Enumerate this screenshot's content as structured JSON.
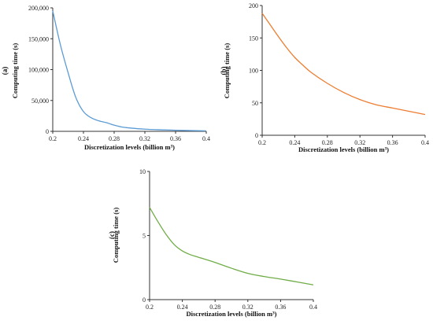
{
  "chart_data": [
    {
      "type": "line",
      "panel_label": "(a)",
      "xlabel": "Discretization levels (billion m³)",
      "ylabel": "Computing time (s)",
      "xlim": [
        0.2,
        0.4
      ],
      "ylim": [
        0,
        200000
      ],
      "xticks": [
        "0.2",
        "0.24",
        "0.28",
        "0.32",
        "0.36",
        "0.4"
      ],
      "yticks": [
        "0",
        "50,000",
        "100,000",
        "150,000",
        "200,000"
      ],
      "color": "#5b9bd5",
      "x": [
        0.2,
        0.21,
        0.22,
        0.23,
        0.24,
        0.25,
        0.26,
        0.27,
        0.28,
        0.29,
        0.3,
        0.32,
        0.34,
        0.36,
        0.38,
        0.4
      ],
      "y": [
        195000,
        140000,
        95000,
        55000,
        32000,
        22000,
        17000,
        14000,
        10000,
        7000,
        5500,
        3500,
        2500,
        1800,
        1200,
        800
      ]
    },
    {
      "type": "line",
      "panel_label": "(b)",
      "xlabel": "Discretization levels (billion m³)",
      "ylabel": "Computing time (s)",
      "xlim": [
        0.2,
        0.4
      ],
      "ylim": [
        0,
        200
      ],
      "xticks": [
        "0.2",
        "0.24",
        "0.28",
        "0.32",
        "0.36",
        "0.4"
      ],
      "yticks": [
        "0",
        "50",
        "100",
        "150",
        "200"
      ],
      "color": "#ed7d31",
      "x": [
        0.2,
        0.21,
        0.22,
        0.23,
        0.24,
        0.25,
        0.26,
        0.28,
        0.3,
        0.32,
        0.34,
        0.36,
        0.38,
        0.4
      ],
      "y": [
        188,
        170,
        152,
        135,
        120,
        108,
        97,
        80,
        66,
        55,
        47,
        42,
        37,
        32
      ]
    },
    {
      "type": "line",
      "panel_label": "(c)",
      "xlabel": "Discretization levels (billion m³)",
      "ylabel": "Computing time (s)",
      "xlim": [
        0.2,
        0.4
      ],
      "ylim": [
        0,
        10
      ],
      "xticks": [
        "0.2",
        "0.24",
        "0.28",
        "0.32",
        "0.36",
        "0.4"
      ],
      "yticks": [
        "0",
        "5",
        "10"
      ],
      "color": "#70ad47",
      "x": [
        0.2,
        0.21,
        0.22,
        0.23,
        0.24,
        0.25,
        0.26,
        0.28,
        0.3,
        0.32,
        0.34,
        0.36,
        0.38,
        0.4
      ],
      "y": [
        7.2,
        6.1,
        5.1,
        4.3,
        3.8,
        3.5,
        3.3,
        2.9,
        2.45,
        2.05,
        1.8,
        1.6,
        1.38,
        1.15
      ]
    }
  ]
}
